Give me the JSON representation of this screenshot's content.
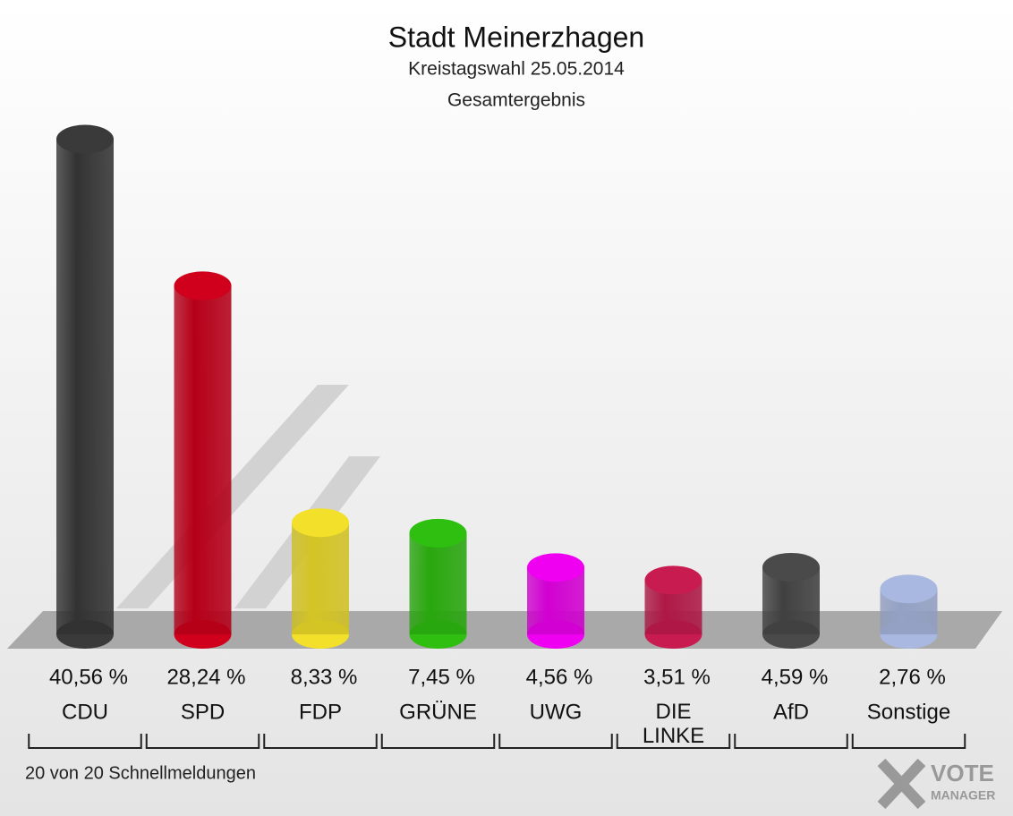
{
  "chart_data": {
    "type": "bar",
    "title": "Stadt Meinerzhagen",
    "subtitle": "Kreistagswahl 25.05.2014",
    "subtitle2": "Gesamtergebnis",
    "categories": [
      "CDU",
      "SPD",
      "FDP",
      "GRÜNE",
      "UWG",
      "DIE LINKE",
      "AfD",
      "Sonstige"
    ],
    "values": [
      40.56,
      28.24,
      8.33,
      7.45,
      4.56,
      3.51,
      4.59,
      2.76
    ],
    "value_labels": [
      "40,56 %",
      "28,24 %",
      "8,33 %",
      "7,45 %",
      "4,56 %",
      "3,51 %",
      "4,59 %",
      "2,76 %"
    ],
    "colors": [
      "#3a3a3a",
      "#d0001c",
      "#f2e02a",
      "#2fbf10",
      "#f000f0",
      "#c81c50",
      "#4a4a4a",
      "#a9b8e0"
    ],
    "footnote": "20 von 20 Schnellmeldungen",
    "logo": [
      "VOTE",
      "MANAGER"
    ]
  }
}
